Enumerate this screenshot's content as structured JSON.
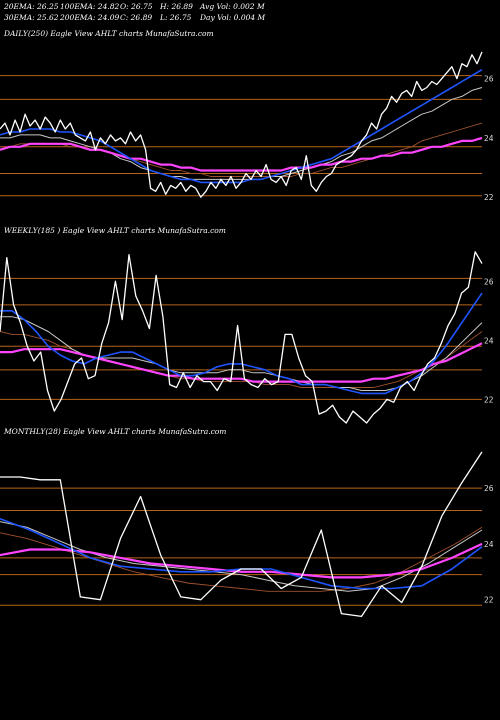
{
  "header": {
    "row1": [
      {
        "label": "20EMA: 26.25"
      },
      {
        "label": "100EMA: 24.82"
      },
      {
        "label": "O: 26.75"
      },
      {
        "label": "H: 26.89"
      },
      {
        "label": "Avg Vol: 0.002  M"
      }
    ],
    "row2": [
      {
        "label": "30EMA: 25.62"
      },
      {
        "label": "200EMA: 24.09"
      },
      {
        "label": "C: 26.89"
      },
      {
        "label": "L: 26.75"
      },
      {
        "label": "Day Vol: 0.004  M"
      }
    ]
  },
  "colors": {
    "background": "#000000",
    "gridline": "#b8631a",
    "price": "#ffffff",
    "ema_fast": "#1f55ff",
    "ema_slow": "#ff44ff",
    "ema_mid": "#c8c8c8",
    "ema_brown": "#a0522d"
  },
  "chart_data": [
    {
      "type": "line",
      "label": "DAILY(250) Eagle   View AHLT charts MunafaSutra.com",
      "ylim": [
        21.3,
        27.3
      ],
      "yticks": [
        26,
        24,
        22
      ],
      "gridlines": [
        26.1,
        25.3,
        23.7,
        22.8,
        22.05
      ],
      "series": [
        {
          "color": "#ffffff",
          "values": [
            24.3,
            24.5,
            24.1,
            24.6,
            24.2,
            24.8,
            24.4,
            24.6,
            24.3,
            24.7,
            24.5,
            24.2,
            24.6,
            24.3,
            24.5,
            24.1,
            24.0,
            23.9,
            24.2,
            23.6,
            24.0,
            23.8,
            24.1,
            23.9,
            24.0,
            23.8,
            24.2,
            23.9,
            24.1,
            23.6,
            22.3,
            22.2,
            22.5,
            22.1,
            22.4,
            22.3,
            22.5,
            22.2,
            22.4,
            22.3,
            22.0,
            22.2,
            22.5,
            22.3,
            22.6,
            22.4,
            22.7,
            22.3,
            22.5,
            22.8,
            22.6,
            22.9,
            22.7,
            23.1,
            22.6,
            22.5,
            22.7,
            22.4,
            22.9,
            23.0,
            22.6,
            23.4,
            22.4,
            22.2,
            22.5,
            22.7,
            22.8,
            23.1,
            23.2,
            23.3,
            23.4,
            23.6,
            23.9,
            24.1,
            24.5,
            24.3,
            24.8,
            25.0,
            25.4,
            25.2,
            25.5,
            25.6,
            25.4,
            25.9,
            25.6,
            25.7,
            25.9,
            25.8,
            26.0,
            26.2,
            26.4,
            26.0,
            26.5,
            26.4,
            26.8,
            26.5,
            26.9
          ]
        },
        {
          "color": "#1f55ff",
          "values": [
            24.1,
            24.2,
            24.2,
            24.3,
            24.3,
            24.3,
            24.2,
            24.2,
            24.1,
            24.0,
            23.9,
            23.7,
            23.5,
            23.3,
            23.1,
            22.9,
            22.8,
            22.7,
            22.6,
            22.6,
            22.5,
            22.5,
            22.5,
            22.5,
            22.5,
            22.6,
            22.6,
            22.7,
            22.8,
            22.9,
            23.0,
            23.1,
            23.2,
            23.3,
            23.5,
            23.7,
            23.9,
            24.1,
            24.3,
            24.5,
            24.7,
            24.9,
            25.1,
            25.3,
            25.5,
            25.7,
            25.9,
            26.1,
            26.3
          ]
        },
        {
          "color": "#c8c8c8",
          "values": [
            24.0,
            24.0,
            24.1,
            24.1,
            24.1,
            24.0,
            24.0,
            23.9,
            23.8,
            23.7,
            23.6,
            23.5,
            23.3,
            23.2,
            23.0,
            22.9,
            22.8,
            22.7,
            22.7,
            22.6,
            22.6,
            22.6,
            22.6,
            22.6,
            22.6,
            22.6,
            22.6,
            22.7,
            22.7,
            22.8,
            22.9,
            23.0,
            23.1,
            23.2,
            23.4,
            23.5,
            23.7,
            23.9,
            24.0,
            24.2,
            24.4,
            24.6,
            24.8,
            24.9,
            25.1,
            25.3,
            25.4,
            25.6,
            25.7
          ]
        },
        {
          "color": "#a0522d",
          "values": [
            23.7,
            23.7,
            23.8,
            23.8,
            23.8,
            23.8,
            23.8,
            23.7,
            23.7,
            23.6,
            23.6,
            23.5,
            23.4,
            23.3,
            23.2,
            23.1,
            23.0,
            22.9,
            22.9,
            22.8,
            22.8,
            22.7,
            22.7,
            22.7,
            22.7,
            22.7,
            22.7,
            22.7,
            22.7,
            22.7,
            22.8,
            22.8,
            22.9,
            23.0,
            23.0,
            23.1,
            23.2,
            23.3,
            23.4,
            23.5,
            23.6,
            23.7,
            23.9,
            24.0,
            24.1,
            24.2,
            24.3,
            24.4,
            24.5
          ]
        },
        {
          "color": "#ff44ff",
          "values": [
            23.6,
            23.7,
            23.7,
            23.8,
            23.8,
            23.8,
            23.8,
            23.8,
            23.7,
            23.6,
            23.6,
            23.5,
            23.4,
            23.3,
            23.3,
            23.2,
            23.1,
            23.1,
            23.0,
            23.0,
            22.9,
            22.9,
            22.9,
            22.9,
            22.9,
            22.9,
            22.9,
            22.9,
            22.9,
            23.0,
            23.0,
            23.0,
            23.1,
            23.1,
            23.2,
            23.2,
            23.3,
            23.3,
            23.4,
            23.4,
            23.5,
            23.5,
            23.6,
            23.7,
            23.7,
            23.8,
            23.9,
            23.9,
            24.0
          ]
        }
      ]
    },
    {
      "type": "line",
      "label": "WEEKLY(185                    ) Eagle   View AHLT charts MunafaSutra.com",
      "ylim": [
        21.3,
        27.5
      ],
      "yticks": [
        26,
        24,
        22
      ],
      "gridlines": [
        26.1,
        25.2,
        23.8,
        23.0,
        22.0
      ],
      "series": [
        {
          "color": "#ffffff",
          "values": [
            24.3,
            26.8,
            25.2,
            24.6,
            23.8,
            23.3,
            23.6,
            22.3,
            21.6,
            22.0,
            22.6,
            23.2,
            23.4,
            22.7,
            22.8,
            23.9,
            24.6,
            26.0,
            24.7,
            26.9,
            25.5,
            25.0,
            24.4,
            26.2,
            24.8,
            22.5,
            22.4,
            22.9,
            22.4,
            22.8,
            22.6,
            22.6,
            22.3,
            22.7,
            22.6,
            24.5,
            22.7,
            22.5,
            22.4,
            22.7,
            22.5,
            22.6,
            24.2,
            24.2,
            23.4,
            22.8,
            22.6,
            21.5,
            21.6,
            21.8,
            21.4,
            21.2,
            21.6,
            21.4,
            21.2,
            21.5,
            21.7,
            22.0,
            21.9,
            22.4,
            22.6,
            22.3,
            22.8,
            23.2,
            23.4,
            23.9,
            24.5,
            24.9,
            25.6,
            25.8,
            27.0,
            26.6
          ]
        },
        {
          "color": "#1f55ff",
          "values": [
            25.0,
            25.0,
            24.7,
            24.3,
            23.8,
            23.5,
            23.3,
            23.2,
            23.4,
            23.5,
            23.6,
            23.6,
            23.4,
            23.2,
            23.0,
            22.8,
            22.8,
            22.9,
            23.1,
            23.2,
            23.2,
            23.1,
            23.0,
            22.8,
            22.7,
            22.5,
            22.5,
            22.5,
            22.4,
            22.3,
            22.2,
            22.2,
            22.2,
            22.4,
            22.6,
            22.9,
            23.3,
            23.8,
            24.4,
            25.0,
            25.6
          ]
        },
        {
          "color": "#c8c8c8",
          "values": [
            24.8,
            24.8,
            24.7,
            24.5,
            24.3,
            24.0,
            23.7,
            23.5,
            23.4,
            23.4,
            23.4,
            23.4,
            23.3,
            23.2,
            23.0,
            22.9,
            22.9,
            22.9,
            22.9,
            23.0,
            23.0,
            22.9,
            22.9,
            22.8,
            22.7,
            22.6,
            22.5,
            22.5,
            22.4,
            22.4,
            22.3,
            22.3,
            22.3,
            22.4,
            22.6,
            22.8,
            23.1,
            23.4,
            23.8,
            24.2,
            24.6
          ]
        },
        {
          "color": "#a0522d",
          "values": [
            24.3,
            24.2,
            24.2,
            24.1,
            24.0,
            23.8,
            23.7,
            23.5,
            23.4,
            23.3,
            23.2,
            23.1,
            23.0,
            22.9,
            22.8,
            22.7,
            22.7,
            22.6,
            22.6,
            22.6,
            22.6,
            22.6,
            22.5,
            22.5,
            22.5,
            22.4,
            22.4,
            22.4,
            22.4,
            22.4,
            22.4,
            22.4,
            22.5,
            22.6,
            22.8,
            23.0,
            23.2,
            23.4,
            23.7,
            24.0,
            24.3
          ]
        },
        {
          "color": "#ff44ff",
          "values": [
            23.6,
            23.6,
            23.7,
            23.7,
            23.7,
            23.7,
            23.6,
            23.5,
            23.4,
            23.3,
            23.2,
            23.1,
            23.0,
            22.9,
            22.8,
            22.8,
            22.7,
            22.7,
            22.7,
            22.7,
            22.7,
            22.6,
            22.6,
            22.6,
            22.6,
            22.6,
            22.6,
            22.6,
            22.6,
            22.6,
            22.6,
            22.7,
            22.7,
            22.8,
            22.9,
            23.0,
            23.2,
            23.3,
            23.5,
            23.7,
            23.9
          ]
        }
      ]
    },
    {
      "type": "line",
      "label": "MONTHLY(28) Eagle   View AHLT charts MunafaSutra.com",
      "ylim": [
        21.2,
        27.8
      ],
      "yticks": [
        26,
        24,
        22
      ],
      "gridlines": [
        26.0,
        25.2,
        23.5,
        22.9,
        21.8
      ],
      "series": [
        {
          "color": "#ffffff",
          "values": [
            26.4,
            26.4,
            26.3,
            26.3,
            22.1,
            22.0,
            24.2,
            25.7,
            23.6,
            22.1,
            22.0,
            22.7,
            23.1,
            23.1,
            22.4,
            22.8,
            24.5,
            21.5,
            21.4,
            22.5,
            21.9,
            23.2,
            25.0,
            26.2,
            27.3
          ]
        },
        {
          "color": "#1f55ff",
          "values": [
            24.9,
            24.5,
            24.0,
            23.5,
            23.2,
            23.1,
            23.0,
            23.0,
            23.1,
            23.1,
            22.8,
            22.5,
            22.4,
            22.4,
            22.5,
            23.1,
            23.9
          ]
        },
        {
          "color": "#c8c8c8",
          "values": [
            24.8,
            24.6,
            24.2,
            23.8,
            23.5,
            23.3,
            23.2,
            23.1,
            23.0,
            22.9,
            22.7,
            22.5,
            22.4,
            22.3,
            22.4,
            22.8,
            23.3,
            23.9,
            24.5
          ]
        },
        {
          "color": "#a0522d",
          "values": [
            24.4,
            24.2,
            23.9,
            23.6,
            23.3,
            23.0,
            22.8,
            22.6,
            22.5,
            22.4,
            22.3,
            22.3,
            22.3,
            22.4,
            22.6,
            23.0,
            23.5,
            24.0,
            24.6
          ]
        },
        {
          "color": "#ff44ff",
          "values": [
            23.6,
            23.8,
            23.8,
            23.7,
            23.5,
            23.3,
            23.2,
            23.1,
            23.0,
            23.0,
            22.9,
            22.8,
            22.8,
            22.9,
            23.1,
            23.5,
            24.0
          ]
        }
      ]
    }
  ]
}
